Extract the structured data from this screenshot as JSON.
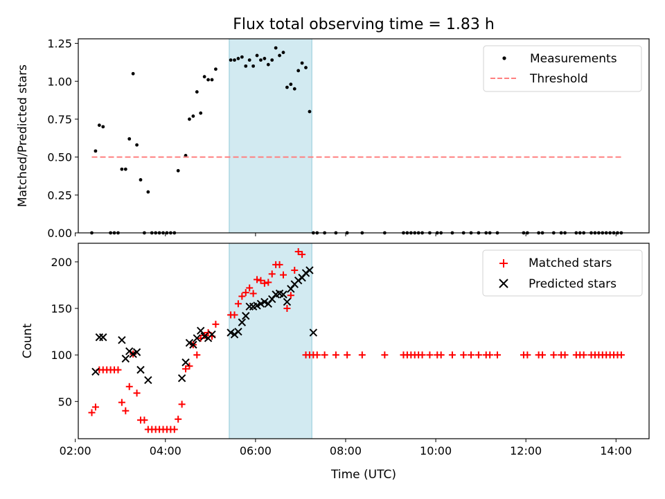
{
  "figure": {
    "title": "Flux total observing time = 1.83 h",
    "xlabel": "Time (UTC)"
  },
  "chart_data": [
    {
      "type": "scatter",
      "title": "Flux total observing time = 1.83 h",
      "xlabel": "",
      "ylabel": "Matched/Predicted stars",
      "xlim": [
        "02:04",
        "14:44"
      ],
      "ylim": [
        0,
        1.28
      ],
      "xticks": [
        "02:00",
        "04:00",
        "06:00",
        "08:00",
        "10:00",
        "12:00",
        "14:00"
      ],
      "yticks": [
        0,
        0.25,
        0.5,
        0.75,
        1.0,
        1.25
      ],
      "ytick_labels": [
        "0.00",
        "0.25",
        "0.50",
        "0.75",
        "1.00",
        "1.25"
      ],
      "legend_position": "top-right",
      "shaded_region": {
        "x": [
          "05:25",
          "07:15"
        ],
        "color": "#add8e6"
      },
      "series": [
        {
          "name": "Measurements",
          "kind": "points",
          "color": "#000000",
          "x": [
            "02:22",
            "02:27",
            "02:32",
            "02:37",
            "02:47",
            "02:52",
            "02:57",
            "03:02",
            "03:07",
            "03:12",
            "03:17",
            "03:22",
            "03:27",
            "03:32",
            "03:37",
            "03:42",
            "03:47",
            "03:52",
            "03:57",
            "04:02",
            "04:07",
            "04:12",
            "04:17",
            "04:27",
            "04:32",
            "04:37",
            "04:42",
            "04:47",
            "04:52",
            "04:57",
            "05:02",
            "05:07",
            "05:27",
            "05:32",
            "05:37",
            "05:42",
            "05:47",
            "05:52",
            "05:57",
            "06:02",
            "06:07",
            "06:12",
            "06:17",
            "06:22",
            "06:27",
            "06:32",
            "06:37",
            "06:42",
            "06:47",
            "06:52",
            "06:57",
            "07:02",
            "07:07",
            "07:12",
            "07:17",
            "07:22",
            "07:32",
            "07:47",
            "08:02",
            "08:22",
            "08:52",
            "09:17",
            "09:22",
            "09:27",
            "09:32",
            "09:37",
            "09:42",
            "09:52",
            "10:02",
            "10:07",
            "10:22",
            "10:37",
            "10:47",
            "10:57",
            "11:07",
            "11:12",
            "11:22",
            "11:57",
            "12:02",
            "12:17",
            "12:22",
            "12:37",
            "12:47",
            "12:52",
            "13:07",
            "13:12",
            "13:17",
            "13:27",
            "13:32",
            "13:37",
            "13:42",
            "13:47",
            "13:52",
            "13:57",
            "14:02",
            "14:07"
          ],
          "y": [
            0,
            0.54,
            0.71,
            0.7,
            0,
            0,
            0,
            0.42,
            0.42,
            0.62,
            1.05,
            0.58,
            0.35,
            0,
            0.27,
            0,
            0,
            0,
            0,
            0,
            0,
            0,
            0.41,
            0.51,
            0.75,
            0.77,
            0.93,
            0.79,
            1.03,
            1.01,
            1.01,
            1.08,
            1.14,
            1.14,
            1.15,
            1.16,
            1.1,
            1.14,
            1.1,
            1.17,
            1.14,
            1.15,
            1.11,
            1.14,
            1.22,
            1.17,
            1.19,
            0.96,
            0.98,
            0.95,
            1.07,
            1.12,
            1.09,
            0.8,
            0,
            0,
            0,
            0,
            0,
            0,
            0,
            0,
            0,
            0,
            0,
            0,
            0,
            0,
            0,
            0,
            0,
            0,
            0,
            0,
            0,
            0,
            0,
            0,
            0,
            0,
            0,
            0,
            0,
            0,
            0,
            0,
            0,
            0,
            0,
            0,
            0,
            0,
            0,
            0,
            0,
            0
          ]
        },
        {
          "name": "Threshold",
          "kind": "dashed-line",
          "color": "#ff7f7f",
          "x": [
            "02:22",
            "14:07"
          ],
          "y": [
            0.5,
            0.5
          ]
        }
      ]
    },
    {
      "type": "scatter",
      "title": "",
      "xlabel": "Time (UTC)",
      "ylabel": "Count",
      "xlim": [
        "02:04",
        "14:44"
      ],
      "ylim": [
        10,
        220
      ],
      "xticks": [
        "02:00",
        "04:00",
        "06:00",
        "08:00",
        "10:00",
        "12:00",
        "14:00"
      ],
      "yticks": [
        50,
        100,
        150,
        200
      ],
      "ytick_labels": [
        "50",
        "100",
        "150",
        "200"
      ],
      "legend_position": "top-right",
      "shaded_region": {
        "x": [
          "05:25",
          "07:15"
        ],
        "color": "#add8e6"
      },
      "series": [
        {
          "name": "Matched stars",
          "kind": "plus",
          "color": "#ff0000",
          "x": [
            "02:22",
            "02:27",
            "02:32",
            "02:37",
            "02:42",
            "02:47",
            "02:52",
            "02:57",
            "03:02",
            "03:07",
            "03:12",
            "03:17",
            "03:22",
            "03:27",
            "03:32",
            "03:37",
            "03:42",
            "03:47",
            "03:52",
            "03:57",
            "04:02",
            "04:07",
            "04:12",
            "04:17",
            "04:22",
            "04:27",
            "04:32",
            "04:37",
            "04:42",
            "04:47",
            "04:52",
            "04:57",
            "05:02",
            "05:07",
            "05:27",
            "05:32",
            "05:37",
            "05:42",
            "05:47",
            "05:52",
            "05:57",
            "06:02",
            "06:07",
            "06:12",
            "06:17",
            "06:22",
            "06:27",
            "06:32",
            "06:37",
            "06:42",
            "06:47",
            "06:52",
            "06:57",
            "07:02",
            "07:07",
            "07:12",
            "07:17",
            "07:22",
            "07:32",
            "07:47",
            "08:02",
            "08:22",
            "08:52",
            "09:17",
            "09:22",
            "09:27",
            "09:32",
            "09:37",
            "09:42",
            "09:52",
            "10:02",
            "10:07",
            "10:22",
            "10:37",
            "10:47",
            "10:57",
            "11:07",
            "11:12",
            "11:22",
            "11:57",
            "12:02",
            "12:17",
            "12:22",
            "12:37",
            "12:47",
            "12:52",
            "13:07",
            "13:12",
            "13:17",
            "13:27",
            "13:32",
            "13:37",
            "13:42",
            "13:47",
            "13:52",
            "13:57",
            "14:02",
            "14:07"
          ],
          "y": [
            38,
            44,
            84,
            84,
            84,
            84,
            84,
            84,
            49,
            40,
            66,
            101,
            59,
            30,
            30,
            20,
            20,
            20,
            20,
            20,
            20,
            20,
            20,
            31,
            47,
            85,
            88,
            111,
            100,
            118,
            121,
            124,
            120,
            133,
            143,
            143,
            155,
            163,
            167,
            172,
            166,
            181,
            180,
            177,
            178,
            187,
            197,
            197,
            186,
            150,
            164,
            191,
            211,
            208,
            100,
            100,
            100,
            100,
            100,
            100,
            100,
            100,
            100,
            100,
            100,
            100,
            100,
            100,
            100,
            100,
            100,
            100,
            100,
            100,
            100,
            100,
            100,
            100,
            100,
            100,
            100,
            100,
            100,
            100,
            100,
            100,
            100,
            100,
            100,
            100,
            100,
            100,
            100,
            100,
            100,
            100,
            100,
            100
          ]
        },
        {
          "name": "Predicted stars",
          "kind": "x",
          "color": "#000000",
          "x": [
            "02:27",
            "02:32",
            "02:37",
            "03:02",
            "03:07",
            "03:12",
            "03:17",
            "03:22",
            "03:27",
            "03:37",
            "04:22",
            "04:27",
            "04:32",
            "04:37",
            "04:42",
            "04:47",
            "04:52",
            "04:57",
            "05:02",
            "05:27",
            "05:32",
            "05:37",
            "05:42",
            "05:47",
            "05:52",
            "05:57",
            "06:02",
            "06:07",
            "06:12",
            "06:17",
            "06:22",
            "06:27",
            "06:32",
            "06:37",
            "06:42",
            "06:47",
            "06:52",
            "06:57",
            "07:02",
            "07:07",
            "07:12",
            "07:17"
          ],
          "y": [
            82,
            119,
            119,
            116,
            96,
            104,
            101,
            103,
            84,
            73,
            75,
            92,
            113,
            111,
            118,
            126,
            120,
            118,
            122,
            124,
            122,
            125,
            135,
            142,
            152,
            152,
            153,
            155,
            157,
            155,
            160,
            165,
            166,
            165,
            157,
            171,
            176,
            180,
            183,
            188,
            191,
            124
          ]
        }
      ]
    }
  ]
}
